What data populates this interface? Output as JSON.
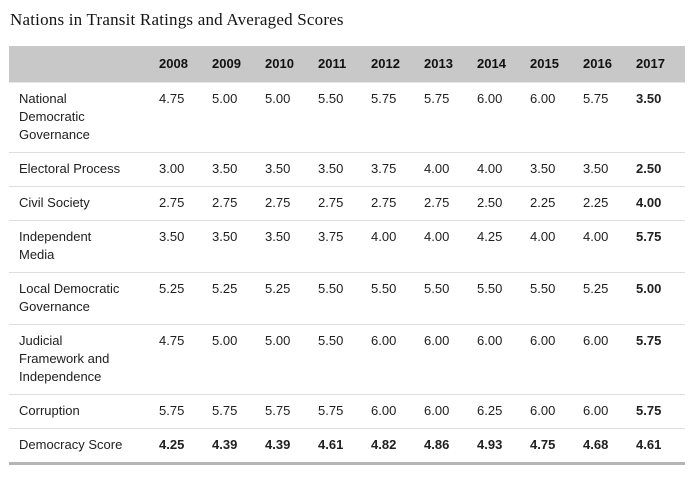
{
  "title": "Nations in Transit Ratings and Averaged Scores",
  "chart_data": {
    "type": "table",
    "title": "Nations in Transit Ratings and Averaged Scores",
    "columns": [
      "2008",
      "2009",
      "2010",
      "2011",
      "2012",
      "2013",
      "2014",
      "2015",
      "2016",
      "2017"
    ],
    "rows": [
      {
        "label": "National Democratic Governance",
        "values": [
          "4.75",
          "5.00",
          "5.00",
          "5.50",
          "5.75",
          "5.75",
          "6.00",
          "6.00",
          "5.75",
          "3.50"
        ],
        "total": false
      },
      {
        "label": "Electoral Process",
        "values": [
          "3.00",
          "3.50",
          "3.50",
          "3.50",
          "3.75",
          "4.00",
          "4.00",
          "3.50",
          "3.50",
          "2.50"
        ],
        "total": false
      },
      {
        "label": "Civil Society",
        "values": [
          "2.75",
          "2.75",
          "2.75",
          "2.75",
          "2.75",
          "2.75",
          "2.50",
          "2.25",
          "2.25",
          "4.00"
        ],
        "total": false
      },
      {
        "label": "Independent Media",
        "values": [
          "3.50",
          "3.50",
          "3.50",
          "3.75",
          "4.00",
          "4.00",
          "4.25",
          "4.00",
          "4.00",
          "5.75"
        ],
        "total": false
      },
      {
        "label": "Local Democratic Governance",
        "values": [
          "5.25",
          "5.25",
          "5.25",
          "5.50",
          "5.50",
          "5.50",
          "5.50",
          "5.50",
          "5.25",
          "5.00"
        ],
        "total": false
      },
      {
        "label": "Judicial Framework and Independence",
        "values": [
          "4.75",
          "5.00",
          "5.00",
          "5.50",
          "6.00",
          "6.00",
          "6.00",
          "6.00",
          "6.00",
          "5.75"
        ],
        "total": false
      },
      {
        "label": "Corruption",
        "values": [
          "5.75",
          "5.75",
          "5.75",
          "5.75",
          "6.00",
          "6.00",
          "6.25",
          "6.00",
          "6.00",
          "5.75"
        ],
        "total": false
      },
      {
        "label": "Democracy Score",
        "values": [
          "4.25",
          "4.39",
          "4.39",
          "4.61",
          "4.82",
          "4.86",
          "4.93",
          "4.75",
          "4.68",
          "4.61"
        ],
        "total": true
      }
    ],
    "styles": {
      "header_background": "#c8c8c8",
      "row_divider": "#dedede",
      "bold_last_column": true
    }
  }
}
